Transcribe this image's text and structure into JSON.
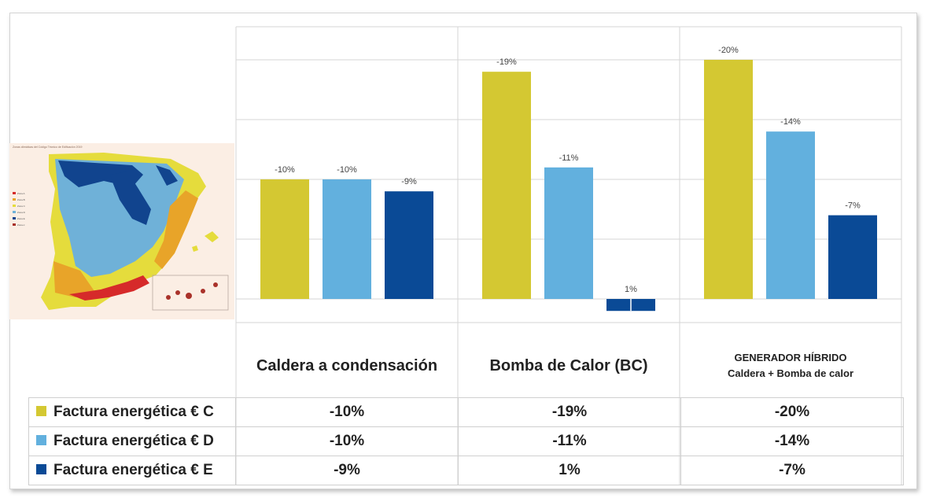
{
  "chart_data": {
    "type": "bar",
    "categories": [
      "Caldera a condensación",
      "Bomba de Calor (BC)",
      "GENERADOR HÍBRIDO Caldera + Bomba de calor"
    ],
    "category_lines": [
      [
        "Caldera a condensación"
      ],
      [
        "Bomba de Calor (BC)"
      ],
      [
        "GENERADOR HÍBRIDO",
        "Caldera + Bomba de calor"
      ]
    ],
    "series": [
      {
        "name": "Factura energética € C",
        "color": "#d4c832",
        "values": [
          10,
          19,
          20
        ],
        "labels": [
          "-10%",
          "-19%",
          "-20%"
        ],
        "table": [
          "-10%",
          "-19%",
          "-20%"
        ]
      },
      {
        "name": "Factura energética € D",
        "color": "#62b0de",
        "values": [
          10,
          11,
          14
        ],
        "labels": [
          "-10%",
          "-11%",
          "-14%"
        ],
        "table": [
          "-10%",
          "-11%",
          "-14%"
        ]
      },
      {
        "name": "Factura energética € E",
        "color": "#0a4a96",
        "values": [
          9,
          -1,
          7
        ],
        "labels": [
          "-9%",
          "1%",
          "-7%"
        ],
        "table": [
          "-9%",
          "1%",
          "-7%"
        ]
      }
    ],
    "ylim": [
      -2,
      20
    ],
    "grid": true,
    "legend": "table-below",
    "title": "",
    "xlabel": "",
    "ylabel": ""
  },
  "map": {
    "title": "Zonas climáticas del Código Técnico de Edificación 2019",
    "legend": [
      "Zona A",
      "Zona B",
      "Zona C",
      "Zona D",
      "Zona E",
      "Zona α"
    ]
  }
}
